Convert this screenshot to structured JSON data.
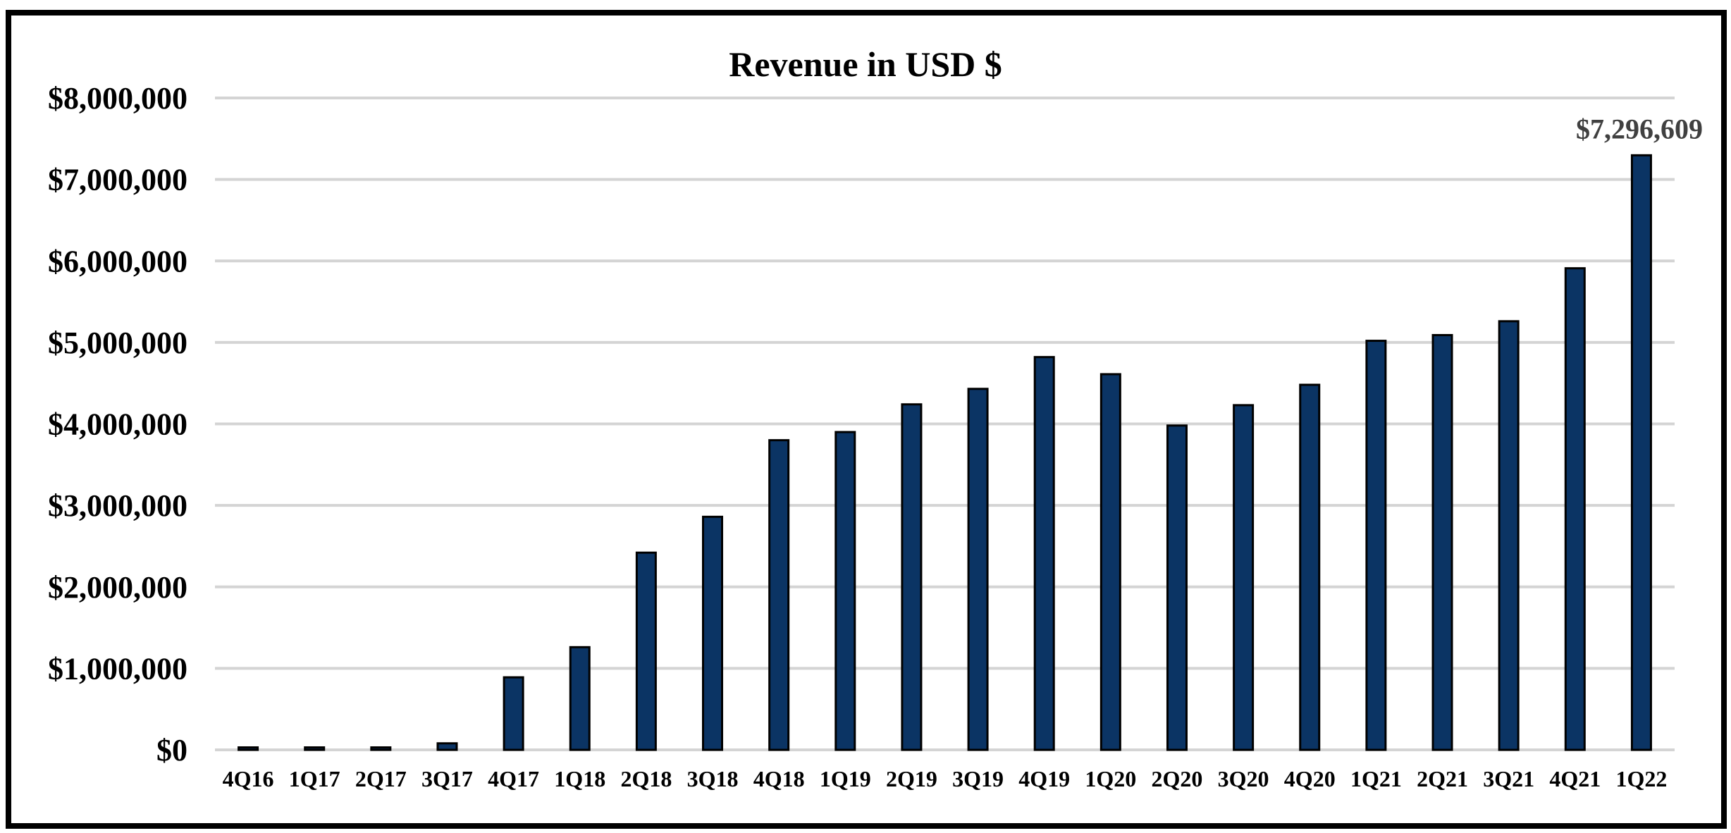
{
  "chart_data": {
    "type": "bar",
    "title": "Revenue in USD $",
    "xlabel": "",
    "ylabel": "",
    "ylim": [
      0,
      8000000
    ],
    "y_ticks": [
      0,
      1000000,
      2000000,
      3000000,
      4000000,
      5000000,
      6000000,
      7000000,
      8000000
    ],
    "y_tick_labels": [
      "$0",
      "$1,000,000",
      "$2,000,000",
      "$3,000,000",
      "$4,000,000",
      "$5,000,000",
      "$6,000,000",
      "$7,000,000",
      "$8,000,000"
    ],
    "grid": true,
    "legend": "none",
    "categories": [
      "4Q16",
      "1Q17",
      "2Q17",
      "3Q17",
      "4Q17",
      "1Q18",
      "2Q18",
      "3Q18",
      "4Q18",
      "1Q19",
      "2Q19",
      "3Q19",
      "4Q19",
      "1Q20",
      "2Q20",
      "3Q20",
      "4Q20",
      "1Q21",
      "2Q21",
      "3Q21",
      "4Q21",
      "1Q22"
    ],
    "values": [
      30000,
      30000,
      30000,
      80000,
      890000,
      1260000,
      2420000,
      2860000,
      3800000,
      3900000,
      4240000,
      4430000,
      4820000,
      4610000,
      3980000,
      4230000,
      4480000,
      5020000,
      5090000,
      5260000,
      5910000,
      7296609
    ],
    "data_labels": [
      {
        "category": "1Q22",
        "text": "$7,296,609"
      }
    ],
    "colors": {
      "bar_fill": "#0b3464",
      "bar_stroke": "#000000",
      "grid": "#d4d4d4",
      "data_label": "#404040"
    }
  }
}
